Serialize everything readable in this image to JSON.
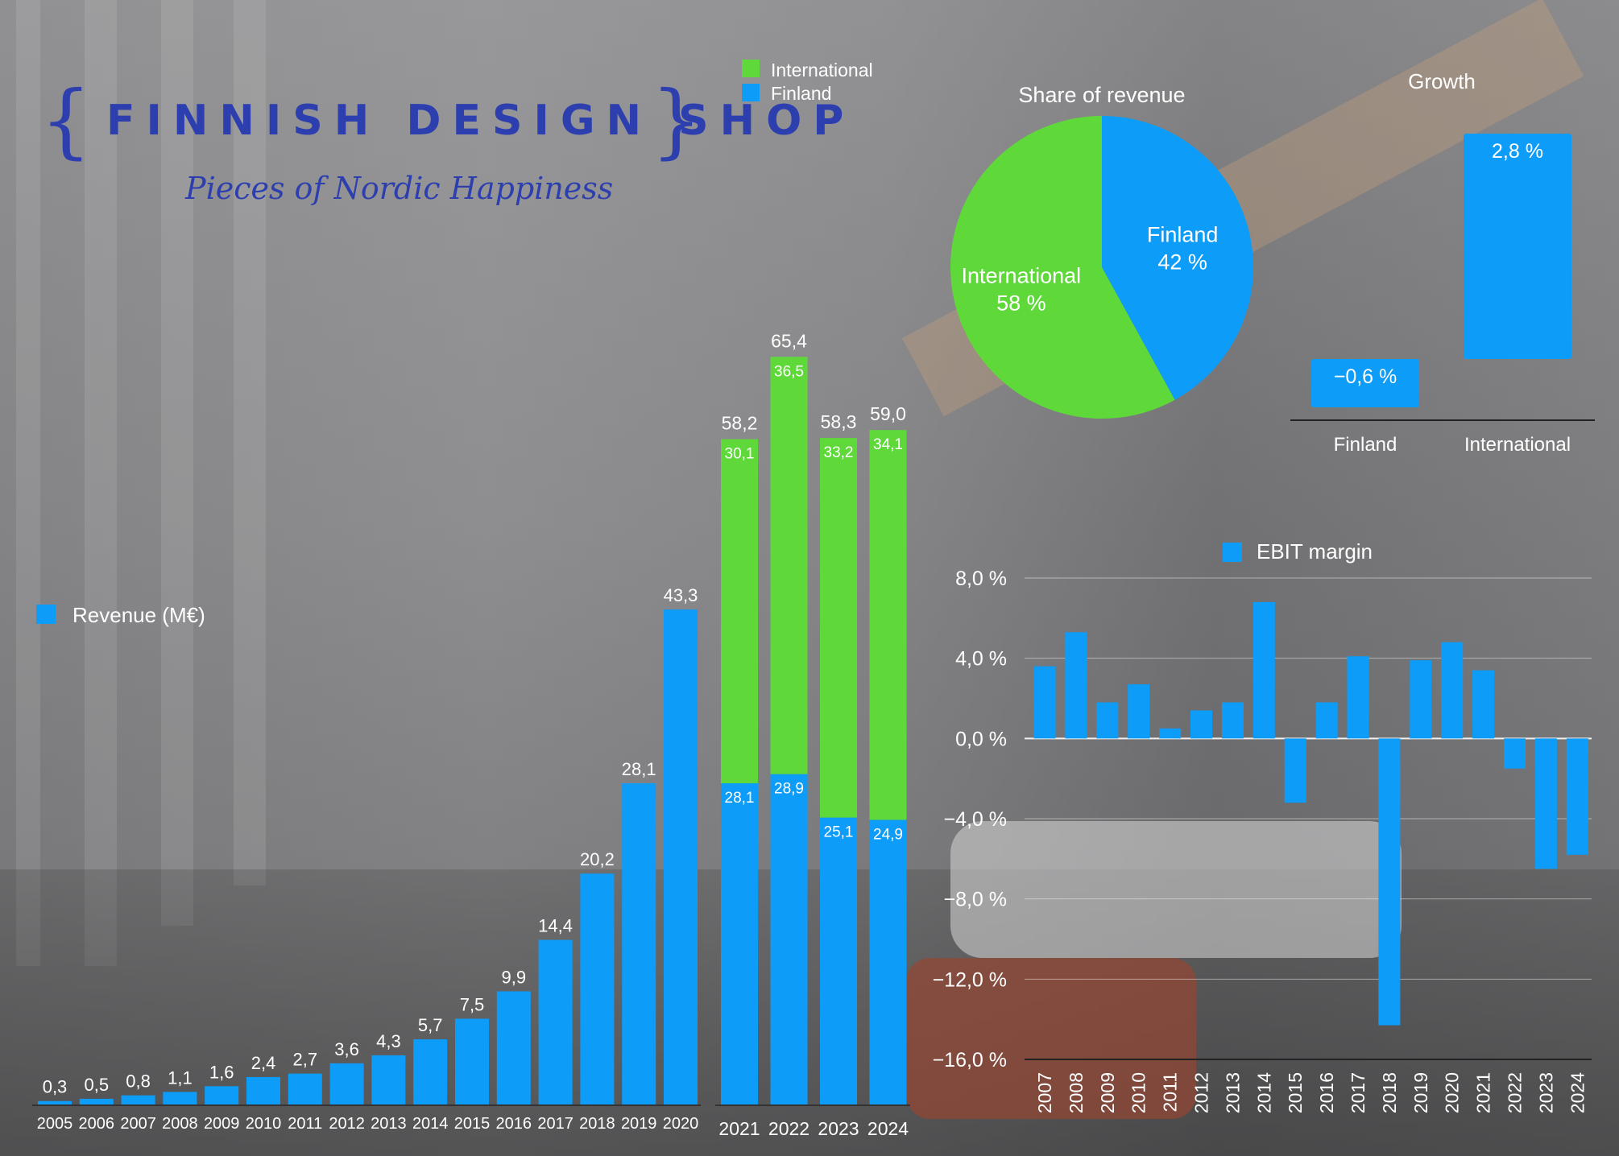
{
  "logo": {
    "brand": "FINNISH DESIGN SHOP",
    "tagline": "Pieces of Nordic Happiness",
    "brace_left": "{",
    "brace_right": "}"
  },
  "colors": {
    "finland": "#0d9cf7",
    "international": "#5fd93a",
    "logo": "#2d3fae",
    "text": "#ffffff"
  },
  "chart_data": [
    {
      "id": "revenue",
      "type": "bar",
      "legend": "Revenue (M€)",
      "categories": [
        "2005",
        "2006",
        "2007",
        "2008",
        "2009",
        "2010",
        "2011",
        "2012",
        "2013",
        "2014",
        "2015",
        "2016",
        "2017",
        "2018",
        "2019",
        "2020"
      ],
      "values": [
        0.3,
        0.5,
        0.8,
        1.1,
        1.6,
        2.4,
        2.7,
        3.6,
        4.3,
        5.7,
        7.5,
        9.9,
        14.4,
        20.2,
        28.1,
        43.3
      ],
      "labels": [
        "0,3",
        "0,5",
        "0,8",
        "1,1",
        "1,6",
        "2,4",
        "2,7",
        "3,6",
        "4,3",
        "5,7",
        "7,5",
        "9,9",
        "14,4",
        "20,2",
        "28,1",
        "43,3"
      ]
    },
    {
      "id": "revenue-split",
      "type": "bar",
      "stacked": true,
      "categories": [
        "2021",
        "2022",
        "2023",
        "2024"
      ],
      "series": [
        {
          "name": "Finland",
          "color": "#0d9cf7",
          "values": [
            28.1,
            28.9,
            25.1,
            24.9
          ],
          "labels": [
            "28,1",
            "28,9",
            "25,1",
            "24,9"
          ]
        },
        {
          "name": "International",
          "color": "#5fd93a",
          "values": [
            30.1,
            36.5,
            33.2,
            34.1
          ],
          "labels": [
            "30,1",
            "36,5",
            "33,2",
            "34,1"
          ]
        }
      ],
      "totals": [
        58.2,
        65.4,
        58.3,
        59.0
      ],
      "total_labels": [
        "58,2",
        "65,4",
        "58,3",
        "59,0"
      ],
      "legend_position": "top"
    },
    {
      "id": "share",
      "type": "pie",
      "title": "Share of revenue",
      "slices": [
        {
          "name": "Finland",
          "value": 42,
          "label": "42 %",
          "color": "#0d9cf7"
        },
        {
          "name": "International",
          "value": 58,
          "label": "58 %",
          "color": "#5fd93a"
        }
      ]
    },
    {
      "id": "growth",
      "type": "bar",
      "title": "Growth",
      "categories": [
        "Finland",
        "International"
      ],
      "values": [
        -0.6,
        2.8
      ],
      "labels": [
        "−0,6 %",
        "2,8 %"
      ]
    },
    {
      "id": "ebit",
      "type": "bar",
      "legend": "EBIT margin",
      "categories": [
        "2007",
        "2008",
        "2009",
        "2010",
        "2011",
        "2012",
        "2013",
        "2014",
        "2015",
        "2016",
        "2017",
        "2018",
        "2019",
        "2020",
        "2021",
        "2022",
        "2023",
        "2024"
      ],
      "values": [
        3.6,
        5.3,
        1.8,
        2.7,
        0.5,
        1.4,
        1.8,
        6.8,
        -3.2,
        1.8,
        4.1,
        -14.3,
        3.9,
        4.8,
        3.4,
        -1.5,
        -6.5,
        -5.8
      ],
      "ylim": [
        -16,
        8
      ],
      "yticks": [
        8,
        4,
        0,
        -4,
        -8,
        -12,
        -16
      ],
      "ytick_labels": [
        "8,0 %",
        "4,0 %",
        "0,0 %",
        "−4,0 %",
        "−8,0 %",
        "−12,0 %",
        "−16,0 %"
      ],
      "grid": true
    }
  ]
}
